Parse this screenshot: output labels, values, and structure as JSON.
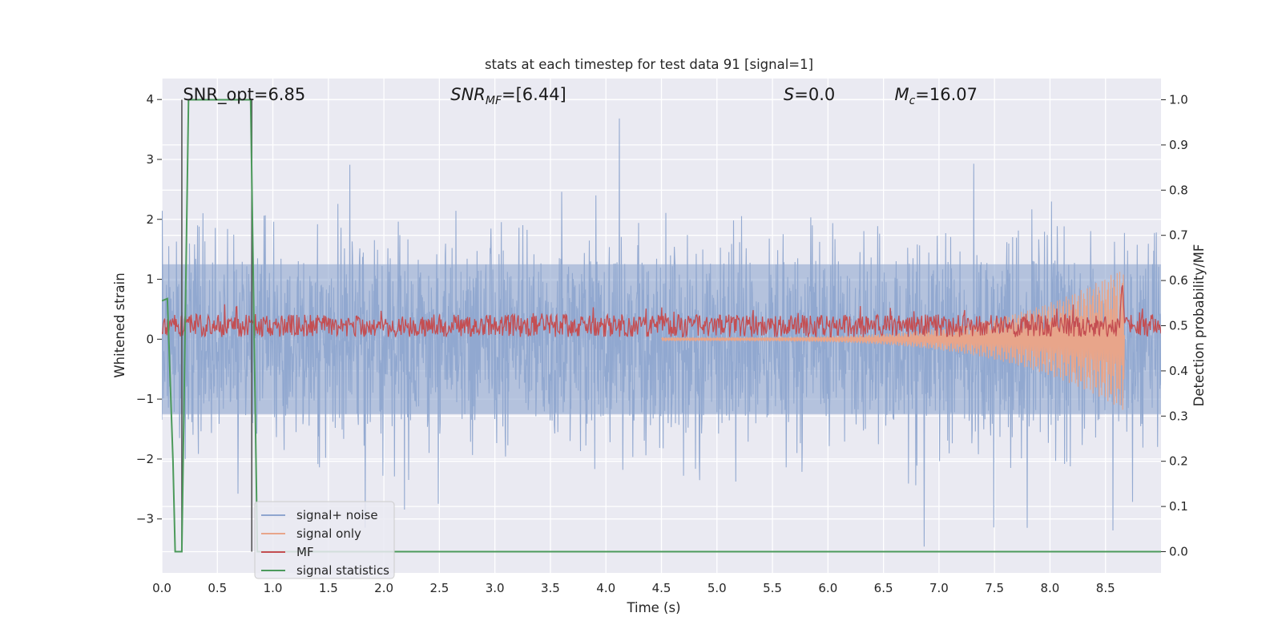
{
  "chart_data": {
    "type": "line",
    "title": "stats at each timestep for test data 91 [signal=1]",
    "xlabel": "Time (s)",
    "ylabel_left": "Whitened strain",
    "ylabel_right": "Detection probability/MF",
    "xlim": [
      0.0,
      9.0
    ],
    "ylim_left": [
      -3.9,
      4.35
    ],
    "ylim_right": [
      -0.047,
      1.047
    ],
    "x_ticks": [
      "0.0",
      "0.5",
      "1.0",
      "1.5",
      "2.0",
      "2.5",
      "3.0",
      "3.5",
      "4.0",
      "4.5",
      "5.0",
      "5.5",
      "6.0",
      "6.5",
      "7.0",
      "7.5",
      "8.0",
      "8.5"
    ],
    "x_tick_values": [
      0.0,
      0.5,
      1.0,
      1.5,
      2.0,
      2.5,
      3.0,
      3.5,
      4.0,
      4.5,
      5.0,
      5.5,
      6.0,
      6.5,
      7.0,
      7.5,
      8.0,
      8.5
    ],
    "y_left_ticks": [
      "4",
      "3",
      "2",
      "1",
      "0",
      "−1",
      "−2",
      "−3"
    ],
    "y_left_tick_values": [
      4,
      3,
      2,
      1,
      0,
      -1,
      -2,
      -3
    ],
    "y_right_ticks": [
      "1.0",
      "0.9",
      "0.8",
      "0.7",
      "0.6",
      "0.5",
      "0.4",
      "0.3",
      "0.2",
      "0.1",
      "0.0"
    ],
    "y_right_tick_values": [
      1.0,
      0.9,
      0.8,
      0.7,
      0.6,
      0.5,
      0.4,
      0.3,
      0.2,
      0.1,
      0.0
    ],
    "grid": true,
    "legend_position": "lower-left",
    "annotations": [
      {
        "text": "SNR_opt=6.85",
        "x": 0.19
      },
      {
        "text_main": "SNR",
        "text_sub": "MF",
        "text_rest": "=[6.44]",
        "x": 2.6
      },
      {
        "text_main": "S",
        "text_rest": "=0.0",
        "x": 5.6
      },
      {
        "text_main": "M",
        "text_sub": "c",
        "text_rest": "=16.07",
        "x": 6.6
      }
    ],
    "vlines": [
      {
        "x": 0.18,
        "y_from": 0.0,
        "y_to": 1.0,
        "color": "#555555"
      },
      {
        "x": 0.81,
        "y_from": 0.0,
        "y_to": 1.0,
        "color": "#555555"
      }
    ],
    "series": [
      {
        "name": "signal+ noise",
        "color": "#8fa6cf",
        "axis": "left",
        "description": "whitened strain noise, roughly gaussian with unit variance, sampled densely over 0–9 s",
        "envelope_min": -3.35,
        "envelope_max": 4.0
      },
      {
        "name": "signal only",
        "color": "#e8a58a",
        "axis": "left",
        "description": "chirp waveform growing in amplitude until merger",
        "x_start": 4.5,
        "x_end": 8.67,
        "amplitude_start": 0.03,
        "amplitude_end": 1.2
      },
      {
        "name": "MF",
        "color": "#c44e52",
        "axis": "right",
        "baseline": 0.5,
        "x_peak": 8.65,
        "y_peak": 0.6
      },
      {
        "name": "signal statistics",
        "color": "#4c9a5b",
        "axis": "right",
        "x": [
          0.0,
          0.05,
          0.1,
          0.12,
          0.18,
          0.24,
          0.3,
          0.75,
          0.8,
          0.86,
          9.0
        ],
        "y": [
          0.555,
          0.56,
          0.2,
          0.0,
          0.0,
          1.0,
          1.0,
          1.0,
          1.0,
          0.0,
          0.0
        ]
      }
    ],
    "legend": [
      "signal+ noise",
      "signal only",
      "MF",
      "signal statistics"
    ]
  }
}
